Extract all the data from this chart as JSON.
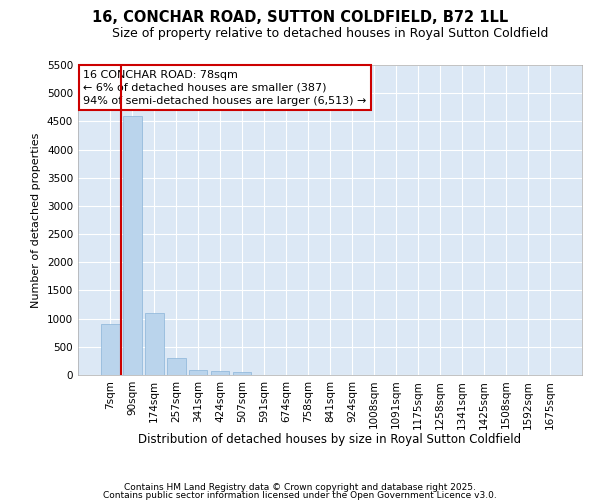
{
  "title": "16, CONCHAR ROAD, SUTTON COLDFIELD, B72 1LL",
  "subtitle": "Size of property relative to detached houses in Royal Sutton Coldfield",
  "xlabel": "Distribution of detached houses by size in Royal Sutton Coldfield",
  "ylabel": "Number of detached properties",
  "categories": [
    "7sqm",
    "90sqm",
    "174sqm",
    "257sqm",
    "341sqm",
    "424sqm",
    "507sqm",
    "591sqm",
    "674sqm",
    "758sqm",
    "841sqm",
    "924sqm",
    "1008sqm",
    "1091sqm",
    "1175sqm",
    "1258sqm",
    "1341sqm",
    "1425sqm",
    "1508sqm",
    "1592sqm",
    "1675sqm"
  ],
  "values": [
    900,
    4600,
    1100,
    300,
    90,
    65,
    50,
    0,
    0,
    0,
    0,
    0,
    0,
    0,
    0,
    0,
    0,
    0,
    0,
    0,
    0
  ],
  "bar_color": "#bad4ec",
  "bar_edge_color": "#8ab4d8",
  "redline_x": 0.5,
  "annotation_text": "16 CONCHAR ROAD: 78sqm\n← 6% of detached houses are smaller (387)\n94% of semi-detached houses are larger (6,513) →",
  "annotation_box_color": "#ffffff",
  "annotation_box_edge": "#cc0000",
  "annotation_text_color": "#000000",
  "redline_color": "#cc0000",
  "ylim": [
    0,
    5500
  ],
  "yticks": [
    0,
    500,
    1000,
    1500,
    2000,
    2500,
    3000,
    3500,
    4000,
    4500,
    5000,
    5500
  ],
  "fig_bg_color": "#ffffff",
  "plot_bg_color": "#dce8f5",
  "grid_color": "#ffffff",
  "footer_line1": "Contains HM Land Registry data © Crown copyright and database right 2025.",
  "footer_line2": "Contains public sector information licensed under the Open Government Licence v3.0.",
  "title_fontsize": 10.5,
  "subtitle_fontsize": 9,
  "xlabel_fontsize": 8.5,
  "ylabel_fontsize": 8,
  "tick_fontsize": 7.5,
  "annotation_fontsize": 8,
  "footer_fontsize": 6.5
}
